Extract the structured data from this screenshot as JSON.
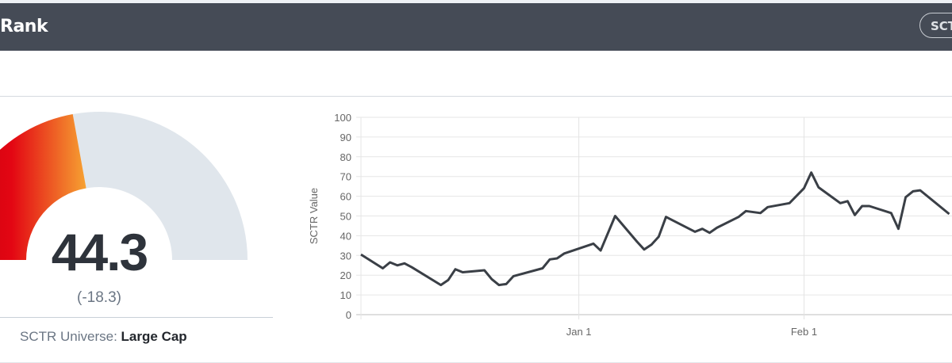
{
  "header": {
    "title": "Rank",
    "button_label": "SCT"
  },
  "gauge": {
    "value": "44.3",
    "change": "(-18.3)",
    "fill_percent": 44.3,
    "colors": {
      "start": "#c4000f",
      "mid": "#e30613",
      "end": "#f6a232",
      "track": "#e0e6ec"
    }
  },
  "universe": {
    "label": "SCTR Universe:",
    "value": "Large Cap"
  },
  "chart_data": {
    "type": "line",
    "ylabel": "SCTR Value",
    "xlabel": "",
    "ylim": [
      0,
      100
    ],
    "yticks": [
      "0",
      "10",
      "20",
      "30",
      "40",
      "50",
      "60",
      "70",
      "80",
      "90",
      "100"
    ],
    "xticks": [
      {
        "date": "Jan 1",
        "label": "Jan 1"
      },
      {
        "date": "Feb 1",
        "label": "Feb 1"
      }
    ],
    "xlim": [
      "Dec 2",
      "Feb 24"
    ],
    "grid": true,
    "line_color": "#3a3f46",
    "series": [
      {
        "points": [
          [
            "Dec 2",
            30.5
          ],
          [
            "Dec 5",
            23.5
          ],
          [
            "Dec 6",
            26.5
          ],
          [
            "Dec 7",
            25
          ],
          [
            "Dec 8",
            26
          ],
          [
            "Dec 9",
            24
          ],
          [
            "Dec 13",
            15
          ],
          [
            "Dec 14",
            17.5
          ],
          [
            "Dec 15",
            23
          ],
          [
            "Dec 16",
            21.5
          ],
          [
            "Dec 19",
            22.5
          ],
          [
            "Dec 20",
            18
          ],
          [
            "Dec 21",
            15
          ],
          [
            "Dec 22",
            15.5
          ],
          [
            "Dec 23",
            19.5
          ],
          [
            "Dec 27",
            23.5
          ],
          [
            "Dec 28",
            28
          ],
          [
            "Dec 29",
            28.5
          ],
          [
            "Dec 30",
            31
          ],
          [
            "Jan 3",
            36
          ],
          [
            "Jan 4",
            32.5
          ],
          [
            "Jan 6",
            50
          ],
          [
            "Jan 9",
            37
          ],
          [
            "Jan 10",
            33
          ],
          [
            "Jan 11",
            35.5
          ],
          [
            "Jan 12",
            39.5
          ],
          [
            "Jan 13",
            49.5
          ],
          [
            "Jan 17",
            42
          ],
          [
            "Jan 18",
            43.5
          ],
          [
            "Jan 19",
            41.5
          ],
          [
            "Jan 20",
            44
          ],
          [
            "Jan 23",
            49.5
          ],
          [
            "Jan 24",
            52.5
          ],
          [
            "Jan 26",
            51.5
          ],
          [
            "Jan 27",
            54.5
          ],
          [
            "Jan 30",
            56.5
          ],
          [
            "Feb 1",
            64
          ],
          [
            "Feb 2",
            72
          ],
          [
            "Feb 3",
            64.5
          ],
          [
            "Feb 6",
            56.5
          ],
          [
            "Feb 7",
            57.5
          ],
          [
            "Feb 8",
            50.5
          ],
          [
            "Feb 9",
            55
          ],
          [
            "Feb 10",
            55
          ],
          [
            "Feb 13",
            51.5
          ],
          [
            "Feb 14",
            43.5
          ],
          [
            "Feb 15",
            59.5
          ],
          [
            "Feb 16",
            62.5
          ],
          [
            "Feb 17",
            63
          ],
          [
            "Feb 21",
            51
          ]
        ]
      }
    ]
  }
}
